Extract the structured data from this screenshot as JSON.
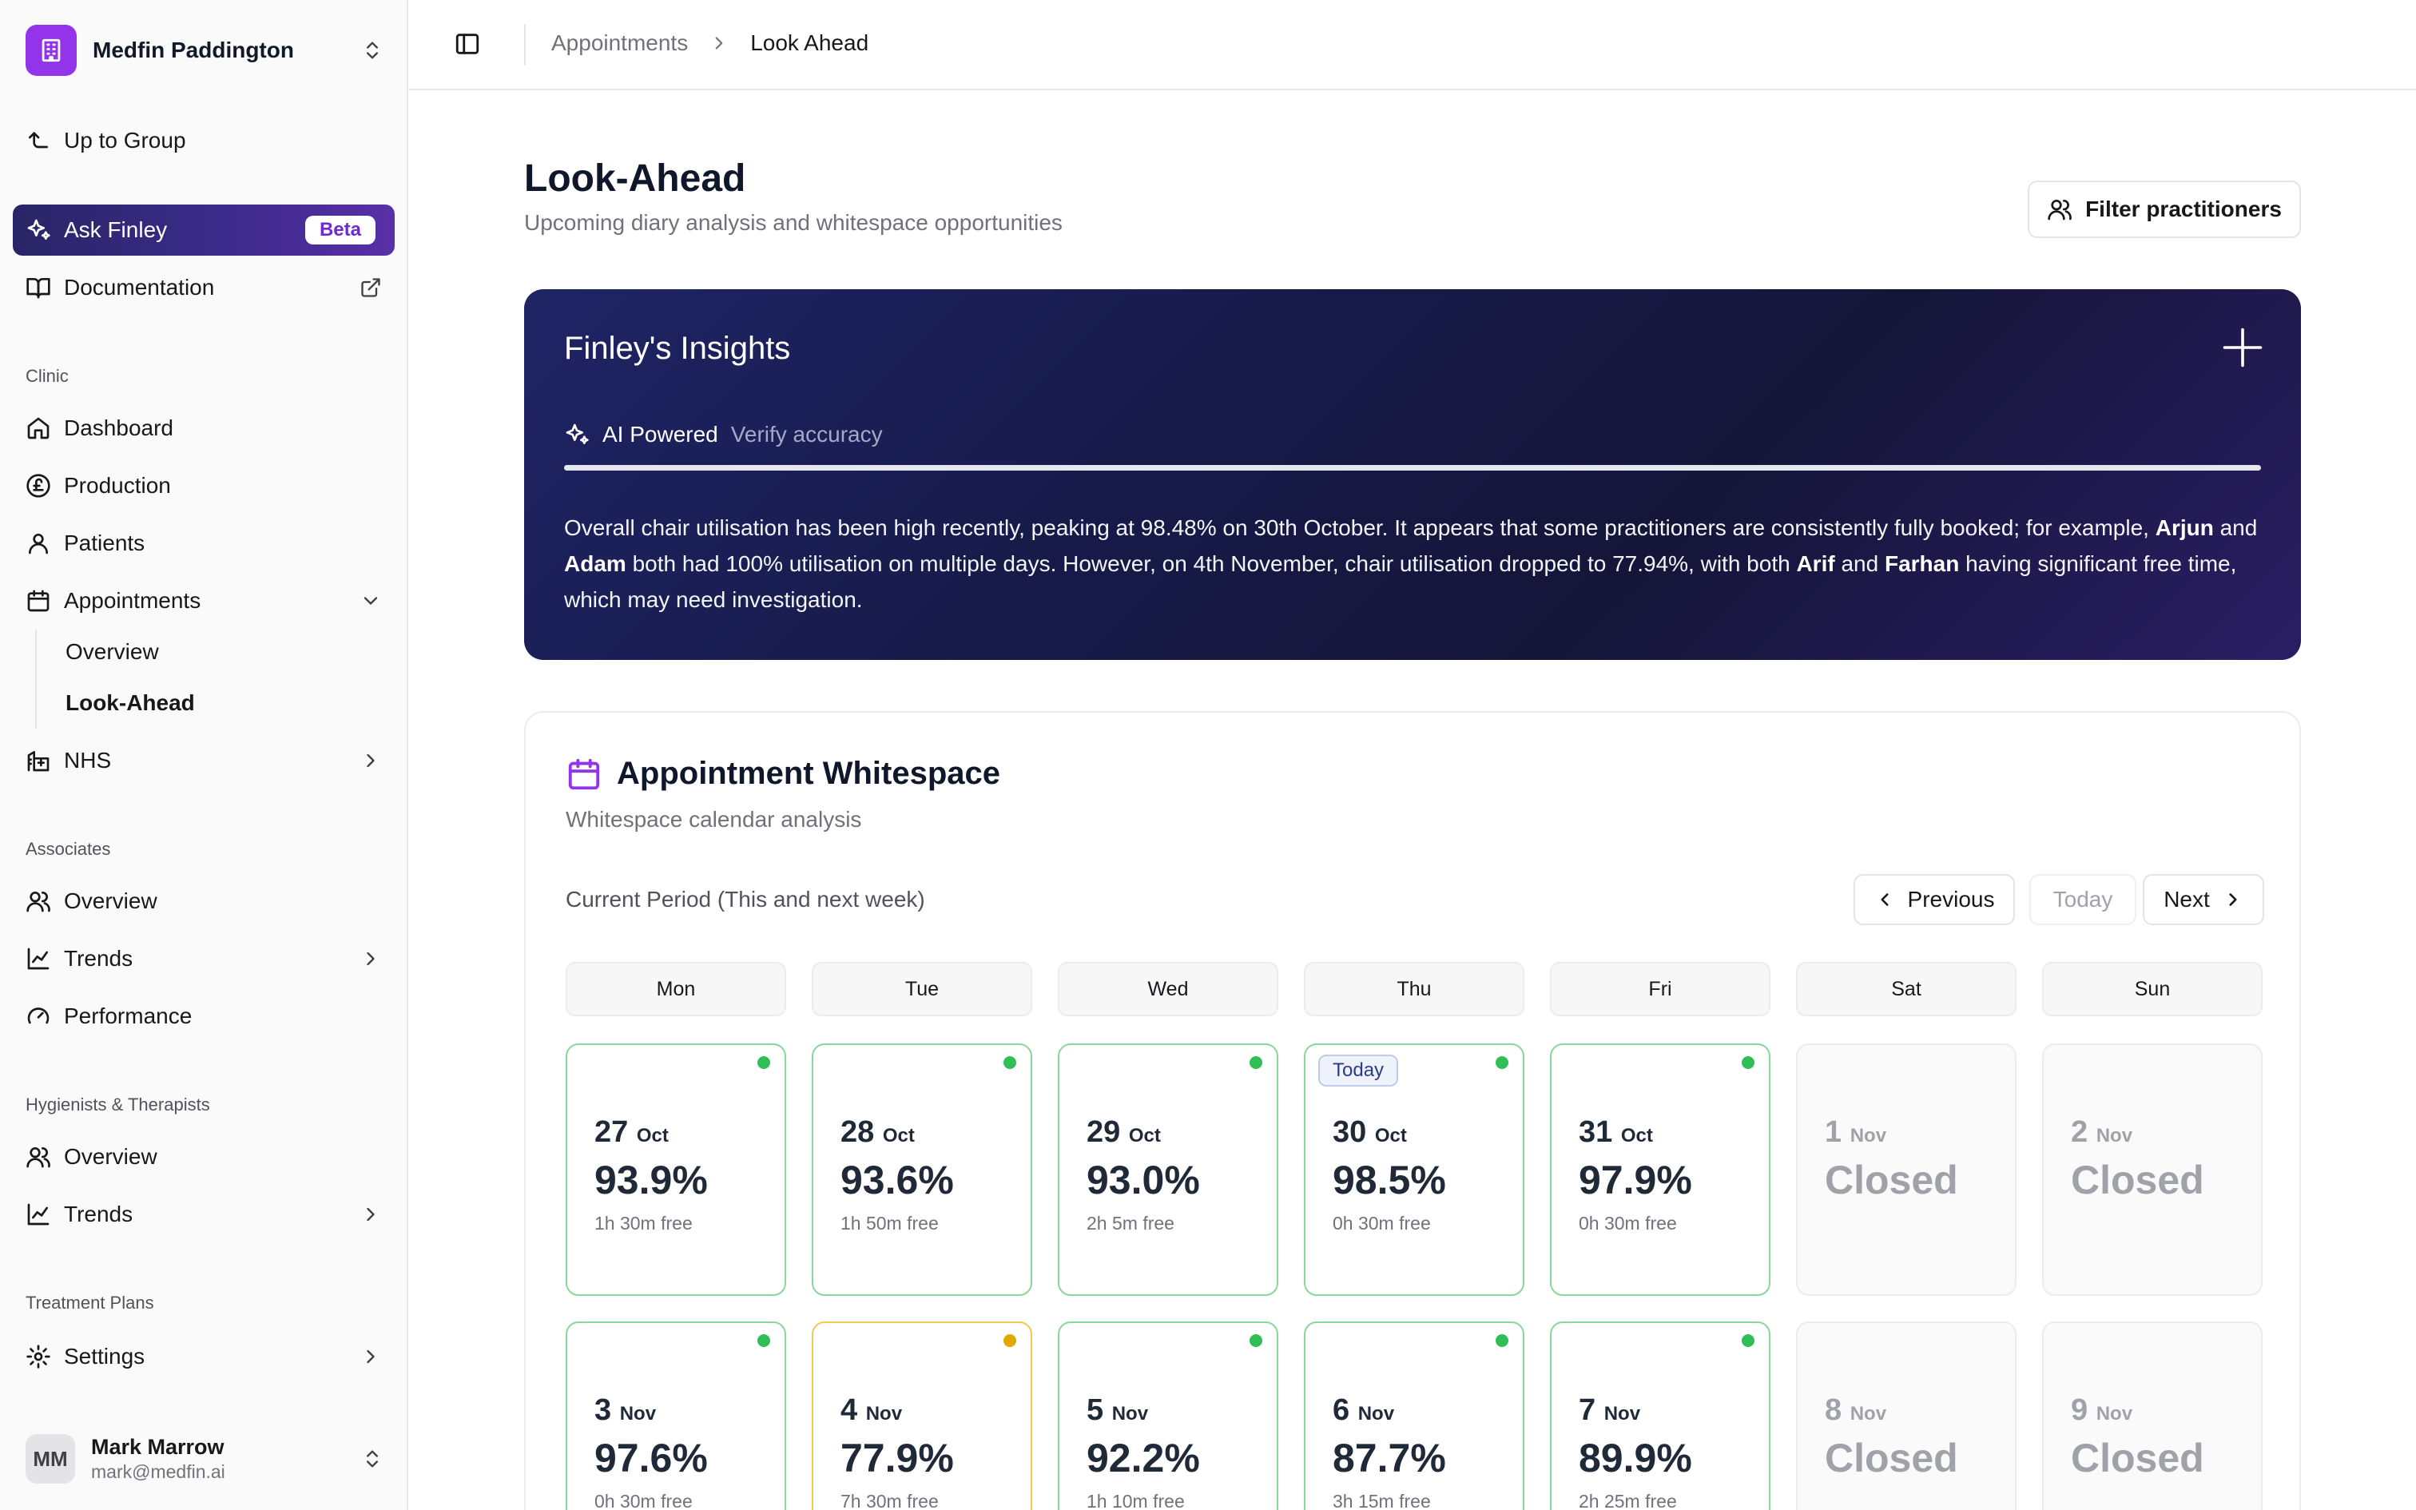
{
  "sidebar": {
    "org_name": "Medfin Paddington",
    "up_to_group": "Up to Group",
    "ask_finley": "Ask Finley",
    "beta": "Beta",
    "documentation": "Documentation",
    "groups": {
      "clinic": "Clinic",
      "associates": "Associates",
      "hygienists": "Hygienists & Therapists",
      "treatment_plans": "Treatment Plans"
    },
    "clinic_items": {
      "dashboard": "Dashboard",
      "production": "Production",
      "patients": "Patients",
      "appointments": "Appointments",
      "appointments_sub": [
        "Overview",
        "Look-Ahead"
      ],
      "nhs": "NHS"
    },
    "associates_items": {
      "overview": "Overview",
      "trends": "Trends",
      "performance": "Performance"
    },
    "hygienists_items": {
      "overview": "Overview",
      "trends": "Trends"
    },
    "settings": "Settings",
    "user": {
      "initials": "MM",
      "name": "Mark Marrow",
      "email": "mark@medfin.ai"
    }
  },
  "topbar": {
    "breadcrumb": [
      "Appointments",
      "Look Ahead"
    ]
  },
  "page": {
    "title": "Look-Ahead",
    "subtitle": "Upcoming diary analysis and whitespace opportunities",
    "filter_button": "Filter practitioners"
  },
  "insights": {
    "title": "Finley's Insights",
    "ai_powered": "AI Powered",
    "verify": "Verify accuracy",
    "text_parts": [
      "Overall chair utilisation has been high recently, peaking at 98.48% on 30th October. It appears that some practitioners are consistently fully booked; for example, ",
      "Arjun",
      " and ",
      "Adam",
      " both had 100% utilisation on multiple days. However, on 4th November, chair utilisation dropped to 77.94%, with both ",
      "Arif",
      " and ",
      "Farhan",
      " having significant free time, which may need investigation."
    ]
  },
  "whitespace": {
    "title": "Appointment Whitespace",
    "subtitle": "Whitespace calendar analysis",
    "period": "Current Period (This and next week)",
    "prev": "Previous",
    "today": "Today",
    "next": "Next",
    "weekdays": [
      "Mon",
      "Tue",
      "Wed",
      "Thu",
      "Fri",
      "Sat",
      "Sun"
    ],
    "today_badge": "Today",
    "weeks": [
      [
        {
          "day": "27",
          "month": "Oct",
          "value": "93.9%",
          "free": "1h 30m free",
          "status": "green"
        },
        {
          "day": "28",
          "month": "Oct",
          "value": "93.6%",
          "free": "1h 50m free",
          "status": "green"
        },
        {
          "day": "29",
          "month": "Oct",
          "value": "93.0%",
          "free": "2h 5m free",
          "status": "green"
        },
        {
          "day": "30",
          "month": "Oct",
          "value": "98.5%",
          "free": "0h 30m free",
          "status": "green",
          "today": true
        },
        {
          "day": "31",
          "month": "Oct",
          "value": "97.9%",
          "free": "0h 30m free",
          "status": "green"
        },
        {
          "day": "1",
          "month": "Nov",
          "value": "Closed",
          "free": "",
          "status": "closed"
        },
        {
          "day": "2",
          "month": "Nov",
          "value": "Closed",
          "free": "",
          "status": "closed"
        }
      ],
      [
        {
          "day": "3",
          "month": "Nov",
          "value": "97.6%",
          "free": "0h 30m free",
          "status": "green"
        },
        {
          "day": "4",
          "month": "Nov",
          "value": "77.9%",
          "free": "7h 30m free",
          "status": "amber"
        },
        {
          "day": "5",
          "month": "Nov",
          "value": "92.2%",
          "free": "1h 10m free",
          "status": "green"
        },
        {
          "day": "6",
          "month": "Nov",
          "value": "87.7%",
          "free": "3h 15m free",
          "status": "green"
        },
        {
          "day": "7",
          "month": "Nov",
          "value": "89.9%",
          "free": "2h 25m free",
          "status": "green"
        },
        {
          "day": "8",
          "month": "Nov",
          "value": "Closed",
          "free": "",
          "status": "closed"
        },
        {
          "day": "9",
          "month": "Nov",
          "value": "Closed",
          "free": "",
          "status": "closed"
        }
      ]
    ]
  },
  "colors": {
    "accent": "#9333ea",
    "green": "#2fbf56",
    "amber": "#e0a800"
  }
}
